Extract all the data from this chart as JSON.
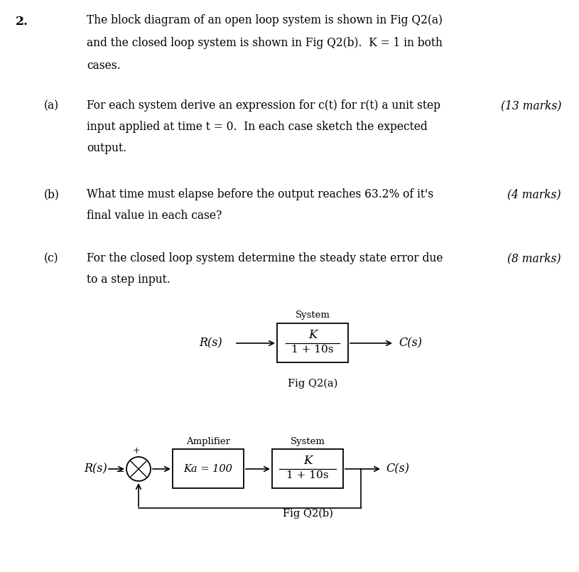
{
  "background_color": "#ffffff",
  "fig_width": 8.15,
  "fig_height": 8.05,
  "dpi": 100,
  "question_number": "2.",
  "parts": [
    {
      "label": "(a)",
      "lines": [
        "For each system derive an expression for c(t) for r(t) a unit step",
        "input applied at time t = 0.  In each case sketch the expected",
        "output."
      ],
      "marks": "(13 marks)"
    },
    {
      "label": "(b)",
      "lines": [
        "What time must elapse before the output reaches 63.2% of it's",
        "final value in each case?"
      ],
      "marks": "(4 marks)"
    },
    {
      "label": "(c)",
      "lines": [
        "For the closed loop system determine the steady state error due",
        "to a step input."
      ],
      "marks": "(8 marks)"
    }
  ],
  "main_lines": [
    "The block diagram of an open loop system is shown in Fig Q2(a)",
    "and the closed loop system is shown in Fig Q2(b).  K = 1 in both",
    "cases."
  ],
  "diagram_a": {
    "label": "Fig Q2(a)",
    "system_label": "System",
    "block_k": "K",
    "block_denom": "1 + 10s",
    "input_label": "R(s)",
    "output_label": "C(s)"
  },
  "diagram_b": {
    "label": "Fig Q2(b)",
    "amplifier_label": "Amplifier",
    "system_label": "System",
    "amp_k": "K",
    "amp_content": "Ka = 100",
    "sys_k": "K",
    "sys_denom": "1 + 10s",
    "input_label": "R(s)",
    "output_label": "C(s)"
  }
}
